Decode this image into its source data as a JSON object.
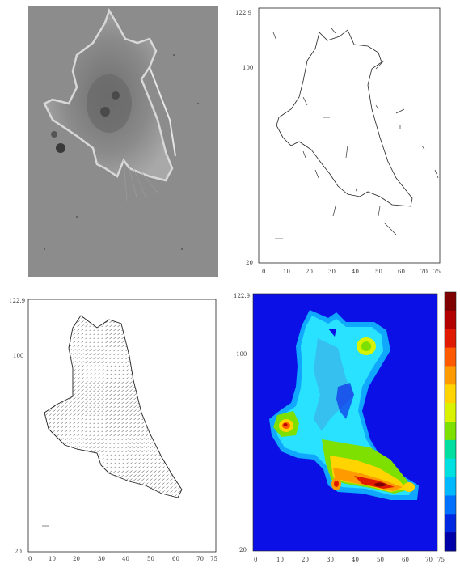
{
  "panels": {
    "microscopy": {},
    "outline_plot": {
      "y_ticks": [
        "122.9",
        "100",
        "20"
      ],
      "x_ticks": [
        "0",
        "10",
        "20",
        "30",
        "40",
        "50",
        "60",
        "70",
        "75"
      ]
    },
    "vector_plot": {
      "y_ticks": [
        "122.9",
        "100",
        "20"
      ],
      "x_ticks": [
        "0",
        "10",
        "20",
        "30",
        "40",
        "50",
        "60",
        "70",
        "75"
      ]
    },
    "heatmap": {
      "y_ticks": [
        "122.9",
        "100",
        "20"
      ],
      "x_ticks": [
        "0",
        "10",
        "20",
        "30",
        "40",
        "50",
        "60",
        "70",
        "75"
      ],
      "colorbar_colors": [
        "#7f0000",
        "#b20000",
        "#e01a00",
        "#ff5a00",
        "#ff9a00",
        "#ffd400",
        "#d8f200",
        "#7de000",
        "#00dfa0",
        "#00e0e0",
        "#00b8ff",
        "#0070ff",
        "#0028e0",
        "#0000a8"
      ],
      "colors": {
        "background": "#0a10e6",
        "halo": "#10a8ff",
        "cyan": "#28e2ff",
        "mid": "#35c0f0"
      }
    }
  }
}
